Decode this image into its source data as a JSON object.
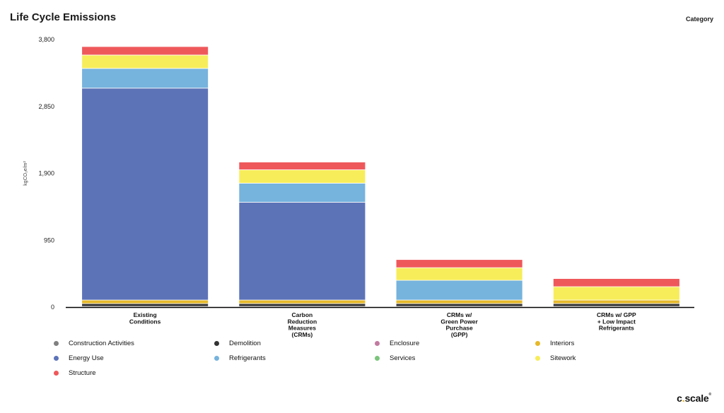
{
  "header": {
    "title": "Life Cycle Emissions",
    "category_label": "Category"
  },
  "logo": {
    "text_c": "c",
    "dot": ".",
    "text_scale": "scale",
    "mark": "®"
  },
  "chart_data": {
    "type": "bar",
    "stacked": true,
    "title": "Life Cycle Emissions",
    "ylabel": "kgCO₂e/m²",
    "xlabel": "",
    "ylim": [
      0,
      3800
    ],
    "yticks": [
      0,
      950,
      1900,
      2850,
      3800
    ],
    "ytick_labels": [
      "0",
      "950",
      "1,900",
      "2,850",
      "3,800"
    ],
    "categories": [
      [
        "Existing",
        "Conditions"
      ],
      [
        "Carbon",
        "Reduction",
        "Measures",
        "(CRMs)"
      ],
      [
        "CRMs w/",
        "Green Power",
        "Purchase",
        "(GPP)"
      ],
      [
        "CRMs w/ GPP",
        "+ Low Impact",
        "Refrigerants"
      ]
    ],
    "series": [
      {
        "name": "Construction Activities",
        "color": "#808080",
        "values": [
          10,
          10,
          10,
          10
        ]
      },
      {
        "name": "Demolition",
        "color": "#333333",
        "values": [
          40,
          40,
          40,
          40
        ]
      },
      {
        "name": "Enclosure",
        "color": "#c27ba0",
        "values": [
          0,
          0,
          0,
          0
        ]
      },
      {
        "name": "Interiors",
        "color": "#e6b92b",
        "values": [
          50,
          50,
          50,
          50
        ]
      },
      {
        "name": "Energy Use",
        "color": "#5c73b8",
        "values": [
          3010,
          1390,
          0,
          0
        ]
      },
      {
        "name": "Refrigerants",
        "color": "#76b3dd",
        "values": [
          280,
          270,
          280,
          0
        ]
      },
      {
        "name": "Services",
        "color": "#7cc47c",
        "values": [
          0,
          0,
          0,
          0
        ]
      },
      {
        "name": "Sitework",
        "color": "#f7ed5a",
        "values": [
          190,
          190,
          180,
          190
        ]
      },
      {
        "name": "Structure",
        "color": "#ef585b",
        "values": [
          120,
          110,
          115,
          115
        ]
      }
    ],
    "legend_position": "bottom",
    "grid": false
  }
}
